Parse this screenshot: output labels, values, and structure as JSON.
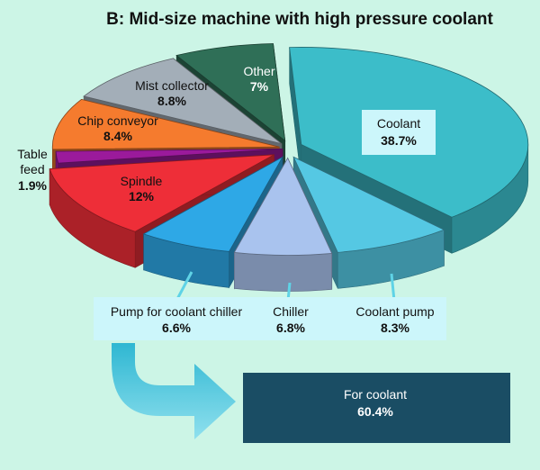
{
  "chart_data": {
    "type": "pie",
    "title": "B: Mid-size machine with high pressure coolant",
    "slices": [
      {
        "label": "Coolant",
        "value": 38.7,
        "value_text": "38.7%",
        "color": "#3cbdc9"
      },
      {
        "label": "Coolant pump",
        "value": 8.3,
        "value_text": "8.3%",
        "color": "#55c8e3"
      },
      {
        "label": "Chiller",
        "value": 6.8,
        "value_text": "6.8%",
        "color": "#a9c3ee"
      },
      {
        "label": "Pump for coolant chiller",
        "value": 6.6,
        "value_text": "6.6%",
        "color": "#2ea8e6"
      },
      {
        "label": "Spindle",
        "value": 12,
        "value_text": "12%",
        "color": "#ee2e38"
      },
      {
        "label": "Table feed",
        "value": 1.9,
        "value_text": "1.9%",
        "color": "#9b1a9b"
      },
      {
        "label": "Chip conveyor",
        "value": 8.4,
        "value_text": "8.4%",
        "color": "#f57b2e"
      },
      {
        "label": "Mist collector",
        "value": 8.8,
        "value_text": "8.8%",
        "color": "#a3aeb8"
      },
      {
        "label": "Other",
        "value": 7,
        "value_text": "7%",
        "color": "#2f6f57"
      }
    ],
    "table_feed_label_lines": [
      "Table",
      "feed"
    ],
    "summary": {
      "label": "For coolant",
      "value": 60.4,
      "value_text": "60.4%"
    }
  }
}
